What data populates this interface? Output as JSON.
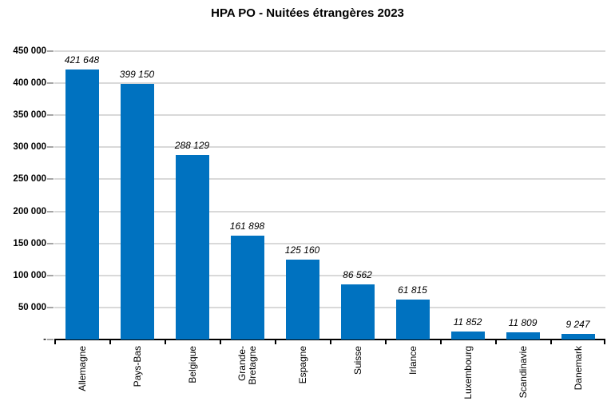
{
  "title": "HPA PO - Nuitées étrangères 2023",
  "chart_data": {
    "type": "bar",
    "title": "HPA PO - Nuitées étrangères 2023",
    "categories": [
      "Allemagne",
      "Pays-Bas",
      "Belgique",
      "Grande-\nBretagne",
      "Espagne",
      "Suisse",
      "Irlance",
      "Luxembourg",
      "Scandinavie",
      "Danemark"
    ],
    "values": [
      421648,
      399150,
      288129,
      161898,
      125160,
      86562,
      61815,
      11852,
      11809,
      9247
    ],
    "data_labels": [
      "421 648",
      "399 150",
      "288 129",
      "161 898",
      "125 160",
      "86 562",
      "61 815",
      "11 852",
      "11 809",
      "9 247"
    ],
    "y_tick_labels": [
      "450 000",
      "400 000",
      "350 000",
      "300 000",
      "250 000",
      "200 000",
      "150 000",
      "100 000",
      "50 000",
      "-"
    ],
    "ylim": [
      0,
      450000
    ],
    "y_step": 50000,
    "xlabel": "",
    "ylabel": "",
    "grid": true,
    "legend": "none",
    "x_labels_rotation_degrees": 90,
    "colors": {
      "bar": "#0072C0",
      "gridline": "#D9D9D9",
      "axis": "#000000",
      "y_tick_mark": "#A6A6A6",
      "text": "#000000",
      "background": "#FFFFFF"
    }
  }
}
